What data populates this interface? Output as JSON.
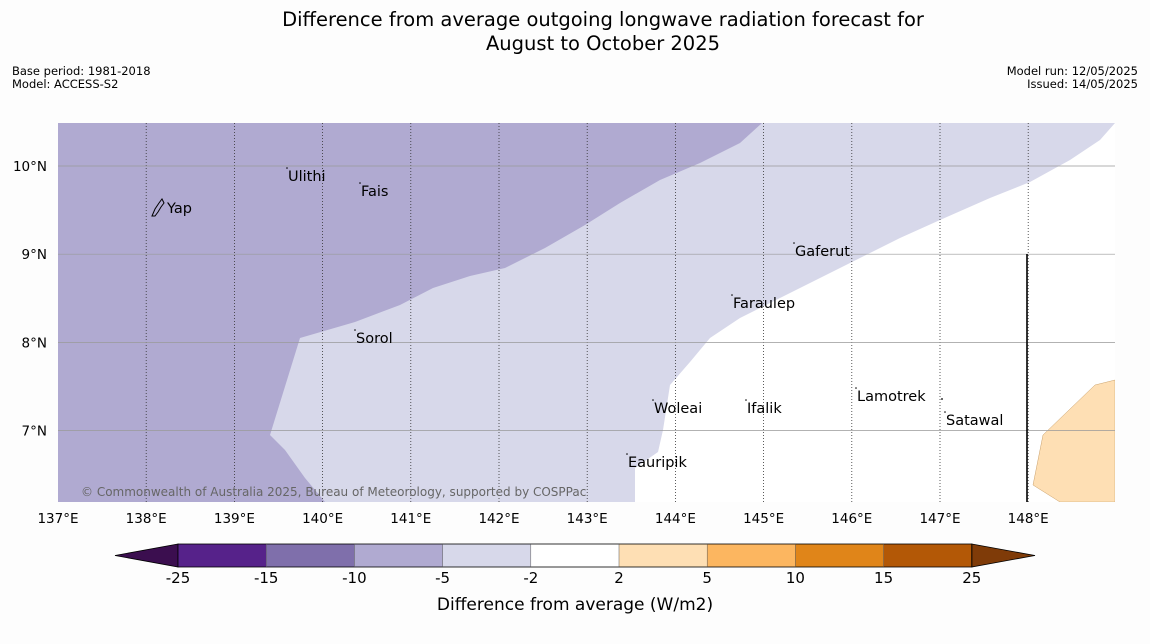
{
  "header": {
    "title_line1": "Difference from average outgoing longwave radiation forecast for",
    "title_line2": "August to October 2025",
    "base_period": "Base period: 1981-2018",
    "model": "Model: ACCESS-S2",
    "model_run": "Model run: 12/05/2025",
    "issued": "Issued: 14/05/2025"
  },
  "map": {
    "lon_range": [
      137,
      149
    ],
    "lat_range": [
      6.2,
      10.5
    ],
    "lon_ticks": [
      "137°E",
      "138°E",
      "139°E",
      "140°E",
      "141°E",
      "142°E",
      "143°E",
      "144°E",
      "145°E",
      "146°E",
      "147°E",
      "148°E"
    ],
    "lat_ticks": [
      "10°N",
      "9°N",
      "8°N",
      "7°N"
    ],
    "places": [
      {
        "name": "Yap"
      },
      {
        "name": "Ulithi"
      },
      {
        "name": "Fais"
      },
      {
        "name": "Gaferut"
      },
      {
        "name": "Faraulep"
      },
      {
        "name": "Sorol"
      },
      {
        "name": "Woleai"
      },
      {
        "name": "Ifalik"
      },
      {
        "name": "Lamotrek"
      },
      {
        "name": "Satawal"
      },
      {
        "name": "Eauripik"
      }
    ],
    "copyright": "© Commonwealth of Australia 2025, Bureau of Meteorology, supported by COSPPac",
    "colors": {
      "band_minus10_minus5": "#b0aad1",
      "band_minus5_minus2": "#d7d8ea",
      "band_minus2_2": "#ffffff",
      "band_2_5": "#fedfb4"
    }
  },
  "colorbar": {
    "label": "Difference from average (W/m2)",
    "ticks": [
      "-25",
      "-15",
      "-10",
      "-5",
      "-2",
      "2",
      "5",
      "10",
      "15",
      "25"
    ],
    "colors": {
      "below_min": "#3b0e4f",
      "c1": "#56228a",
      "c2": "#7f6fab",
      "c3": "#b0aad1",
      "c4": "#d7d8ea",
      "c5": "#ffffff",
      "c6": "#fedfb4",
      "c7": "#fcb660",
      "c8": "#e08519",
      "c9": "#b35806",
      "above_max": "#7f3b08"
    }
  }
}
